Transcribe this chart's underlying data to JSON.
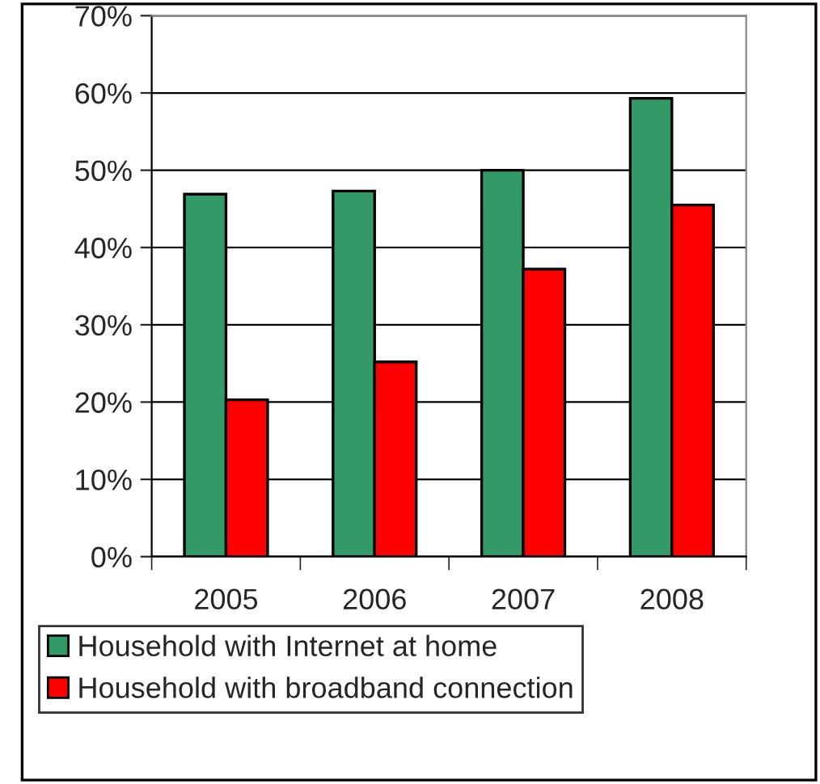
{
  "chart_data": {
    "type": "bar",
    "categories": [
      "2005",
      "2006",
      "2007",
      "2008"
    ],
    "series": [
      {
        "name": "Household with Internet at home",
        "color": "#339966",
        "values": [
          46.9,
          47.3,
          50.0,
          59.3
        ]
      },
      {
        "name": "Household with broadband connection",
        "color": "#ff0000",
        "values": [
          20.3,
          25.2,
          37.2,
          45.5
        ]
      }
    ],
    "ylim": [
      0,
      70
    ],
    "yticks": [
      {
        "value": 0,
        "label": "0%"
      },
      {
        "value": 10,
        "label": "10%"
      },
      {
        "value": 20,
        "label": "20%"
      },
      {
        "value": 30,
        "label": "30%"
      },
      {
        "value": 40,
        "label": "40%"
      },
      {
        "value": 50,
        "label": "50%"
      },
      {
        "value": 60,
        "label": "60%"
      },
      {
        "value": 70,
        "label": "70%"
      }
    ],
    "grid": "y",
    "legend": "bottom"
  }
}
